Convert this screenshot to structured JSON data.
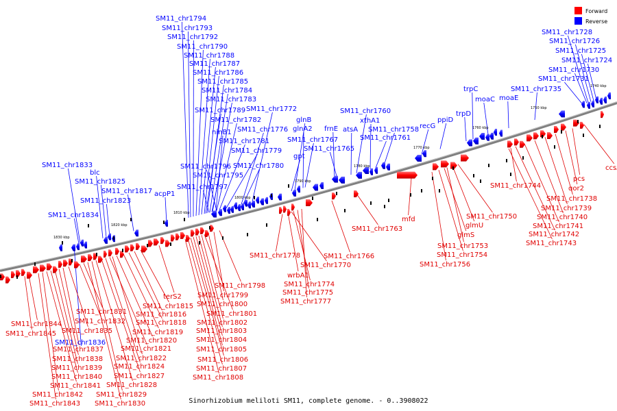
{
  "caption": "Sinorhizobium meliloti SM11, complete genome. - 0..3908022",
  "legend": [
    {
      "label": "Forward",
      "color": "#ff0000"
    },
    {
      "label": "Reverse",
      "color": "#0000ff"
    }
  ],
  "ticks": [
    "1830 kbp",
    "1820 kbp",
    "1810 kbp",
    "1800 kbp",
    "1790 kbp",
    "1780 kbp",
    "1770 kbp",
    "1760 kbp",
    "1750 kbp",
    "1740 kbp"
  ],
  "reverse_labels": [
    "SM11_chr1794",
    "SM11_chr1793",
    "SM11_chr1792",
    "SM11_chr1790",
    "SM11_chr1788",
    "SM11_chr1787",
    "SM11_chr1786",
    "SM11_chr1785",
    "SM11_chr1784",
    "SM11_chr1783",
    "SM11_chr1789",
    "SM11_chr1782",
    "SM11_chr1776",
    "SM11_chr1781",
    "SM11_chr1779",
    "SM11_chr1780",
    "SM11_chr1796",
    "SM11_chr1795",
    "SM11_chr1797",
    "SM11_chr1772",
    "glnB",
    "glnA2",
    "SM11_chr1767",
    "gpt",
    "frnE",
    "SM11_chr1765",
    "SM11_chr1760",
    "xthA1",
    "atsA",
    "SM11_chr1761",
    "SM11_chr1758",
    "recG",
    "ppiD",
    "trpD",
    "trpC",
    "moaC",
    "moaE",
    "SM11_chr1735",
    "SM11_chr1731",
    "SM11_chr1730",
    "SM11_chr1724",
    "SM11_chr1725",
    "SM11_chr1726",
    "SM11_chr1728",
    "ninB1",
    "acpP1",
    "SM11_chr1817",
    "SM11_chr1823",
    "SM11_chr1825",
    "blc",
    "SM11_chr1833",
    "SM11_chr1834",
    "SM11_chr1836"
  ],
  "forward_labels": [
    "ccsA",
    "pcs",
    "qor2",
    "SM11_chr1738",
    "SM11_chr1739",
    "SM11_chr1740",
    "SM11_chr1741",
    "SM11_chr1742",
    "SM11_chr1743",
    "SM11_chr1744",
    "SM11_chr1750",
    "glmU",
    "glmS",
    "SM11_chr1753",
    "SM11_chr1754",
    "SM11_chr1756",
    "mfd",
    "SM11_chr1763",
    "SM11_chr1766",
    "SM11_chr1770",
    "SM11_chr1778",
    "wrbA1",
    "SM11_chr1774",
    "SM11_chr1775",
    "SM11_chr1777",
    "SM11_chr1798",
    "SM11_chr1799",
    "SM11_chr1800",
    "SM11_chr1801",
    "SM11_chr1802",
    "SM11_chr1803",
    "SM11_chr1804",
    "SM11_chr1805",
    "SM11_chr1806",
    "SM11_chr1807",
    "SM11_chr1808",
    "terS2",
    "SM11_chr1815",
    "SM11_chr1816",
    "SM11_chr1818",
    "SM11_chr1819",
    "SM11_chr1820",
    "SM11_chr1821",
    "SM11_chr1822",
    "SM11_chr1824",
    "SM11_chr1827",
    "SM11_chr1828",
    "SM11_chr1829",
    "SM11_chr1830",
    "SM11_chr1831",
    "SM11_chr1832",
    "SM11_chr1835",
    "SM11_chr1837",
    "SM11_chr1838",
    "SM11_chr1839",
    "SM11_chr1840",
    "SM11_chr1841",
    "SM11_chr1842",
    "SM11_chr1843",
    "SM11_chr1844",
    "SM11_chr1845"
  ]
}
